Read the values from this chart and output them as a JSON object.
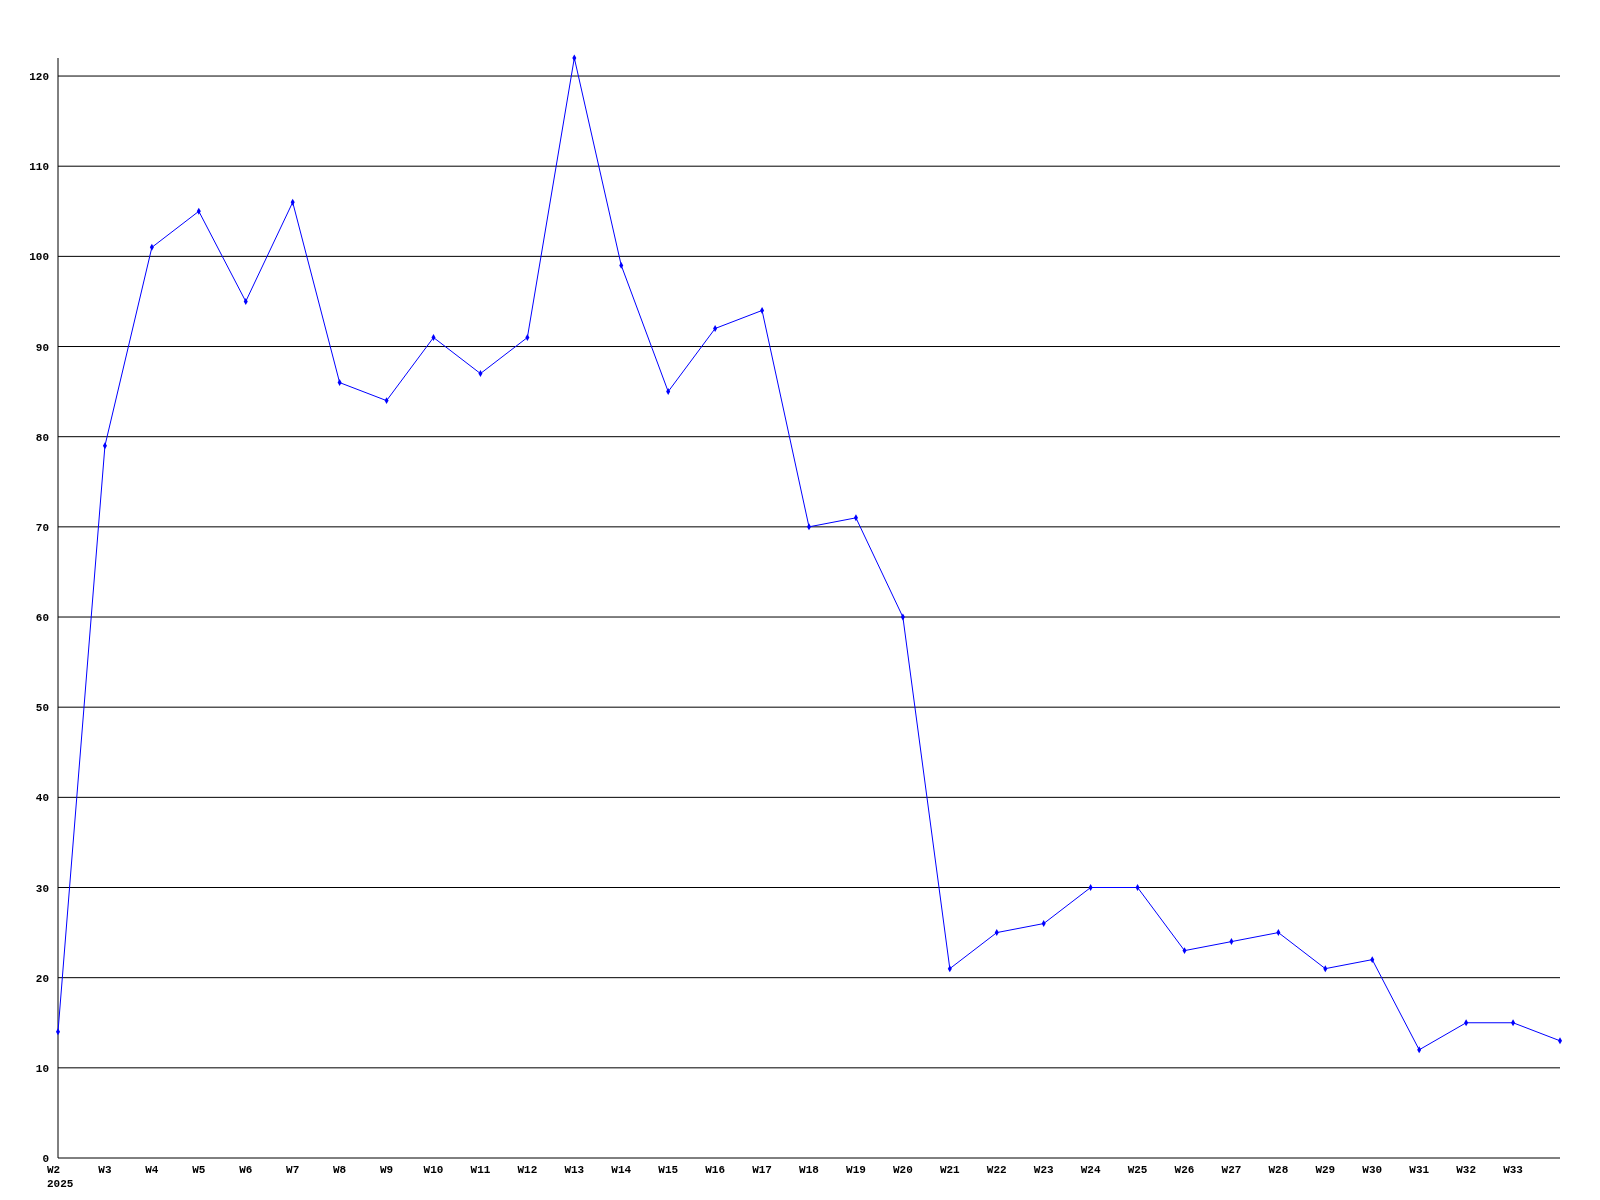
{
  "chart_data": {
    "type": "line",
    "categories": [
      "W2\n2025",
      "W3",
      "W4",
      "W5",
      "W6",
      "W7",
      "W8",
      "W9",
      "W10",
      "W11",
      "W12",
      "W13",
      "W14",
      "W15",
      "W16",
      "W17",
      "W18",
      "W19",
      "W20",
      "W21",
      "W22",
      "W23",
      "W24",
      "W25",
      "W26",
      "W27",
      "W28",
      "W29",
      "W30",
      "W31",
      "W32",
      "W33",
      null
    ],
    "series": [
      {
        "color": "#0000ff",
        "values": [
          14,
          79,
          101,
          105,
          95,
          106,
          86,
          84,
          91,
          87,
          91,
          122,
          99,
          85,
          92,
          94,
          70,
          71,
          60,
          21,
          25,
          26,
          30,
          30,
          23,
          24,
          25,
          21,
          22,
          12,
          15,
          15,
          13
        ]
      }
    ],
    "ylim": [
      0,
      122
    ],
    "yticks": [
      0,
      10,
      20,
      30,
      40,
      50,
      60,
      70,
      80,
      90,
      100,
      110,
      120
    ],
    "grid": "y",
    "marker": "diamond",
    "line_style": "solid"
  }
}
